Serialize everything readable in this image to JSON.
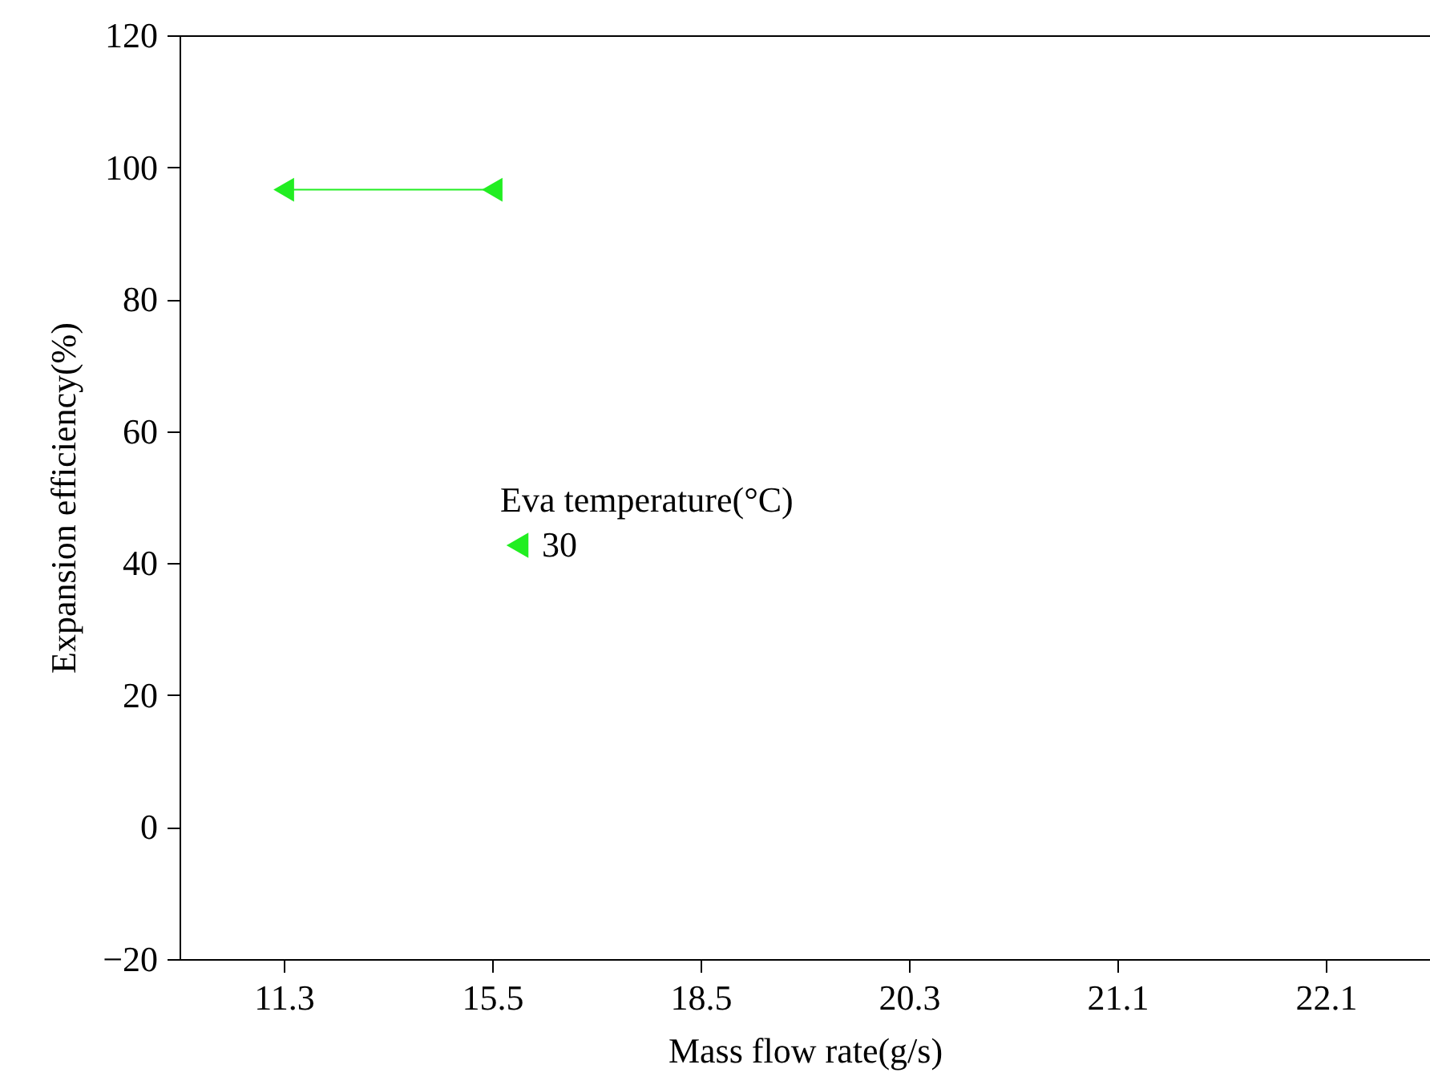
{
  "chart_data": {
    "type": "line",
    "xlabel": "Mass flow rate(g/s)",
    "ylabel": "Expansion efficiency(%)",
    "legend_title": "Eva temperature(°C)",
    "categories": [
      "11.3",
      "15.5",
      "18.5",
      "20.3",
      "21.1",
      "22.1"
    ],
    "series": [
      {
        "name": "30",
        "color": "#22ee22",
        "values": [
          96.6,
          96.6,
          null,
          null,
          null,
          null
        ]
      }
    ],
    "ylim": [
      -20,
      120
    ],
    "yticks": [
      -20,
      0,
      20,
      40,
      60,
      80,
      100,
      120
    ],
    "grid": false,
    "legend": "left",
    "marker": "triangle",
    "line_style": "solid"
  }
}
